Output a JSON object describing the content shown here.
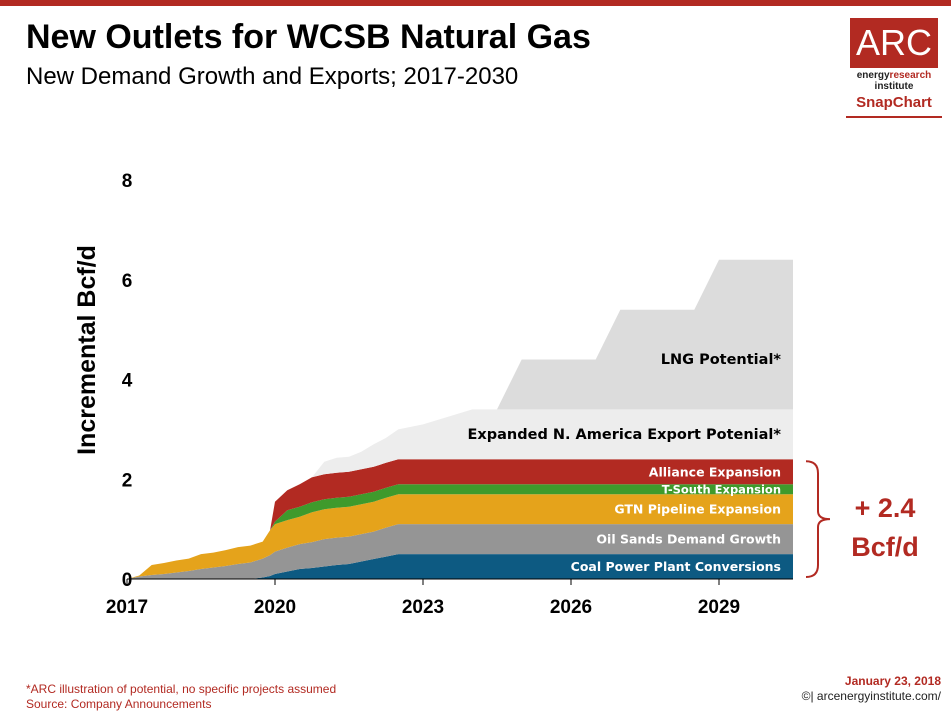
{
  "header": {
    "title": "New Outlets for WCSB Natural Gas",
    "subtitle": "New Demand Growth and Exports; 2017-2030"
  },
  "logo": {
    "box_text": "ARC",
    "line1_a": "energy",
    "line1_b": "research",
    "line2": "institute",
    "snapchart": "SnapChart"
  },
  "footer": {
    "note": "*ARC illustration of potential, no specific projects assumed",
    "source": "Source: Company Announcements",
    "date": "January 23, 2018",
    "copyright": "©| arcenergyinstitute.com/"
  },
  "colors": {
    "accent": "#b22a22",
    "coal": "#0d5a82",
    "oilsands": "#959595",
    "gtn": "#e5a31b",
    "tsouth": "#3f9a2c",
    "alliance": "#b22a22",
    "expanded": "#ededed",
    "lng": "#dcdcdc"
  },
  "chart_data": {
    "type": "area",
    "title": "New Outlets for WCSB Natural Gas",
    "subtitle": "New Demand Growth and Exports; 2017-2030",
    "ylabel": "Incremental Bcf/d",
    "xlabel": "",
    "ylim": [
      0,
      8
    ],
    "xlim": [
      2017,
      2030.5
    ],
    "yticks": [
      "0",
      "2",
      "4",
      "6",
      "8"
    ],
    "xticks": [
      "2017",
      "2020",
      "2023",
      "2026",
      "2029"
    ],
    "x": [
      2017.0,
      2017.25,
      2017.5,
      2017.75,
      2018.0,
      2018.25,
      2018.5,
      2018.75,
      2019.0,
      2019.25,
      2019.5,
      2019.75,
      2019.9,
      2020.0,
      2020.25,
      2020.5,
      2020.75,
      2021.0,
      2021.25,
      2021.5,
      2021.75,
      2022.0,
      2022.25,
      2022.5,
      2023.0,
      2023.5,
      2024.0,
      2024.5,
      2025.0,
      2025.5,
      2026.0,
      2026.5,
      2027.0,
      2027.5,
      2028.0,
      2028.5,
      2029.0,
      2029.5,
      2030.0,
      2030.5
    ],
    "series": [
      {
        "name": "Coal Power Plant Conversions",
        "values": [
          0,
          0,
          0,
          0,
          0,
          0,
          0,
          0,
          0,
          0,
          0,
          0.03,
          0.06,
          0.1,
          0.15,
          0.2,
          0.22,
          0.25,
          0.28,
          0.3,
          0.35,
          0.4,
          0.45,
          0.5,
          0.5,
          0.5,
          0.5,
          0.5,
          0.5,
          0.5,
          0.5,
          0.5,
          0.5,
          0.5,
          0.5,
          0.5,
          0.5,
          0.5,
          0.5,
          0.5
        ]
      },
      {
        "name": "Oil Sands Demand Growth",
        "values": [
          0,
          0.05,
          0.08,
          0.1,
          0.13,
          0.16,
          0.2,
          0.23,
          0.26,
          0.3,
          0.33,
          0.38,
          0.42,
          0.45,
          0.48,
          0.5,
          0.52,
          0.55,
          0.55,
          0.55,
          0.55,
          0.55,
          0.58,
          0.6,
          0.6,
          0.6,
          0.6,
          0.6,
          0.6,
          0.6,
          0.6,
          0.6,
          0.6,
          0.6,
          0.6,
          0.6,
          0.6,
          0.6,
          0.6,
          0.6
        ]
      },
      {
        "name": "GTN Pipeline Expansion",
        "values": [
          0,
          0.02,
          0.2,
          0.22,
          0.24,
          0.25,
          0.3,
          0.3,
          0.32,
          0.34,
          0.34,
          0.34,
          0.5,
          0.55,
          0.55,
          0.55,
          0.6,
          0.6,
          0.6,
          0.6,
          0.6,
          0.6,
          0.6,
          0.6,
          0.6,
          0.6,
          0.6,
          0.6,
          0.6,
          0.6,
          0.6,
          0.6,
          0.6,
          0.6,
          0.6,
          0.6,
          0.6,
          0.6,
          0.6,
          0.6
        ]
      },
      {
        "name": "T-South Expansion",
        "values": [
          0,
          0,
          0,
          0,
          0,
          0,
          0,
          0,
          0,
          0,
          0,
          0,
          0,
          0.05,
          0.2,
          0.2,
          0.2,
          0.2,
          0.2,
          0.2,
          0.2,
          0.2,
          0.2,
          0.2,
          0.2,
          0.2,
          0.2,
          0.2,
          0.2,
          0.2,
          0.2,
          0.2,
          0.2,
          0.2,
          0.2,
          0.2,
          0.2,
          0.2,
          0.2,
          0.2
        ]
      },
      {
        "name": "Alliance Expansion",
        "values": [
          0,
          0,
          0,
          0,
          0,
          0,
          0,
          0,
          0,
          0,
          0,
          0,
          0,
          0.4,
          0.4,
          0.45,
          0.5,
          0.5,
          0.5,
          0.5,
          0.5,
          0.5,
          0.5,
          0.5,
          0.5,
          0.5,
          0.5,
          0.5,
          0.5,
          0.5,
          0.5,
          0.5,
          0.5,
          0.5,
          0.5,
          0.5,
          0.5,
          0.5,
          0.5,
          0.5
        ]
      },
      {
        "name": "Expanded N. America Export Potenial*",
        "values": [
          0,
          0,
          0,
          0,
          0,
          0,
          0,
          0,
          0,
          0,
          0,
          0,
          0,
          0,
          0,
          0,
          0,
          0.25,
          0.3,
          0.3,
          0.35,
          0.45,
          0.5,
          0.6,
          0.7,
          0.85,
          1.0,
          1.0,
          1.0,
          1.0,
          1.0,
          1.0,
          1.0,
          1.0,
          1.0,
          1.0,
          1.0,
          1.0,
          1.0,
          1.0
        ]
      },
      {
        "name": "LNG  Potential*",
        "values": [
          0,
          0,
          0,
          0,
          0,
          0,
          0,
          0,
          0,
          0,
          0,
          0,
          0,
          0,
          0,
          0,
          0,
          0,
          0,
          0,
          0,
          0,
          0,
          0,
          0,
          0,
          0,
          0,
          1.0,
          1.0,
          1.0,
          1.0,
          2.0,
          2.0,
          2.0,
          2.0,
          3.0,
          3.0,
          3.0,
          3.0
        ]
      }
    ],
    "bracket_label": [
      "+ 2.4",
      "Bcf/d"
    ],
    "grid": false,
    "legend": "inline labels on right"
  }
}
